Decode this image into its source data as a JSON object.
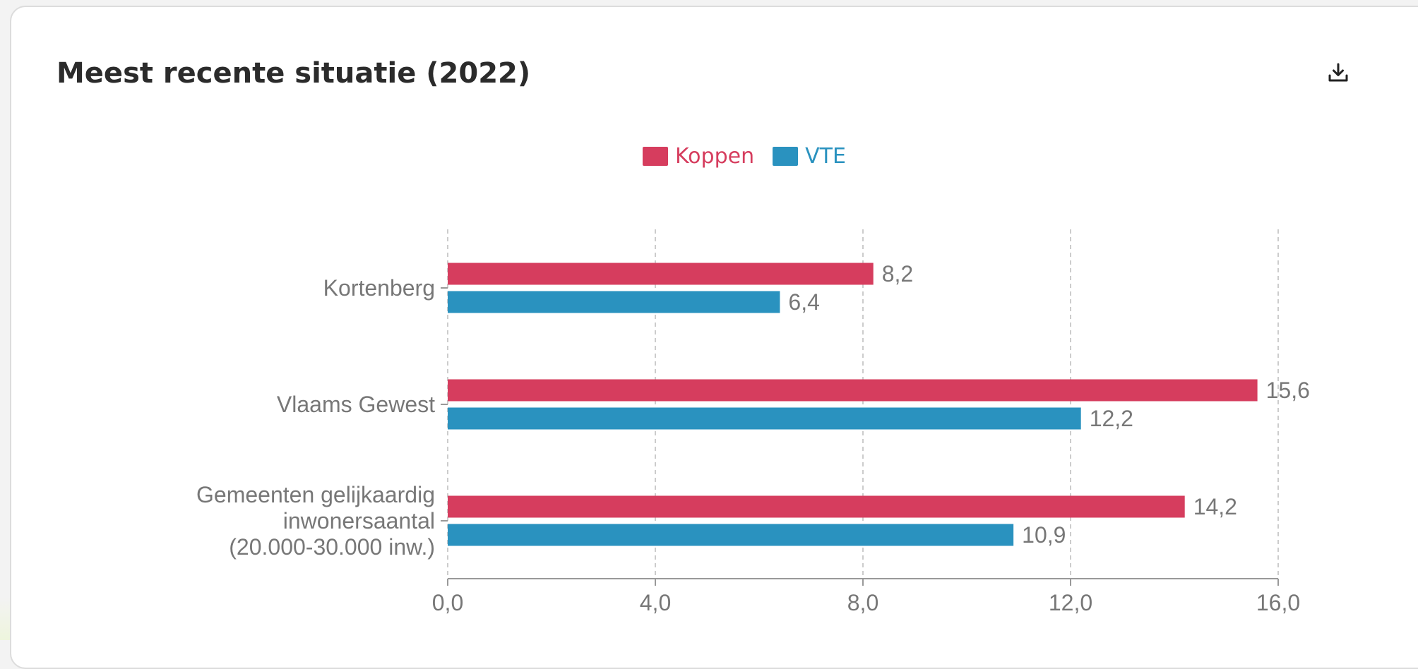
{
  "card": {
    "title": "Meest recente situatie (2022)",
    "download_icon": "download-icon"
  },
  "colors": {
    "Koppen": "#d63d5e",
    "VTE": "#2a92bf"
  },
  "chart_data": {
    "type": "bar",
    "orientation": "horizontal",
    "title": "Meest recente situatie (2022)",
    "categories": [
      [
        "Kortenberg"
      ],
      [
        "Vlaams Gewest"
      ],
      [
        "Gemeenten gelijkaardig",
        "inwonersaantal",
        "(20.000-30.000 inw.)"
      ]
    ],
    "series": [
      {
        "name": "Koppen",
        "values": [
          8.2,
          15.6,
          14.2
        ],
        "labels": [
          "8,2",
          "15,6",
          "14,2"
        ]
      },
      {
        "name": "VTE",
        "values": [
          6.4,
          12.2,
          10.9
        ],
        "labels": [
          "6,4",
          "12,2",
          "10,9"
        ]
      }
    ],
    "xlim": [
      0,
      16
    ],
    "ticks": [
      0,
      4,
      8,
      12,
      16
    ],
    "tick_labels": [
      "0,0",
      "4,0",
      "8,0",
      "12,0",
      "16,0"
    ],
    "grid": true,
    "legend_position": "top-center"
  }
}
